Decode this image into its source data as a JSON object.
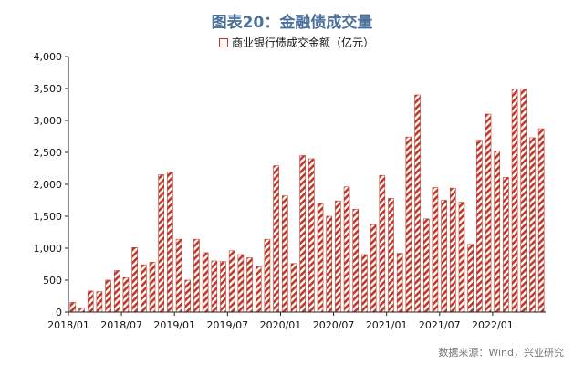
{
  "chart_data": {
    "type": "bar",
    "title": "图表20：金融债成交量",
    "legend": {
      "entries": [
        "商业银行债成交金额（亿元）"
      ],
      "position": "top"
    },
    "source": "数据来源：Wind，兴业研究",
    "xlabel": "",
    "ylabel": "",
    "ylim": [
      0,
      4000
    ],
    "yticks": [
      "0",
      "500",
      "1,000",
      "1,500",
      "2,000",
      "2,500",
      "3,000",
      "3,500",
      "4,000"
    ],
    "xtick_labels": [
      "2018/01",
      "2018/07",
      "2019/01",
      "2019/07",
      "2020/01",
      "2020/07",
      "2021/01",
      "2021/07",
      "2022/01"
    ],
    "grid": false,
    "bar_color": "#c0392b",
    "series": [
      {
        "name": "商业银行债成交金额（亿元）",
        "values": [
          150,
          60,
          330,
          320,
          500,
          650,
          540,
          1010,
          740,
          780,
          2150,
          2190,
          1140,
          500,
          1140,
          930,
          800,
          790,
          960,
          900,
          850,
          710,
          1140,
          2290,
          1820,
          760,
          2450,
          2400,
          1700,
          1500,
          1740,
          1960,
          1610,
          900,
          1370,
          2140,
          1780,
          920,
          2740,
          3400,
          1460,
          1950,
          1750,
          1940,
          1720,
          1060,
          2690,
          3100,
          2520,
          2110,
          3490,
          3490,
          2730,
          2870
        ]
      }
    ]
  }
}
